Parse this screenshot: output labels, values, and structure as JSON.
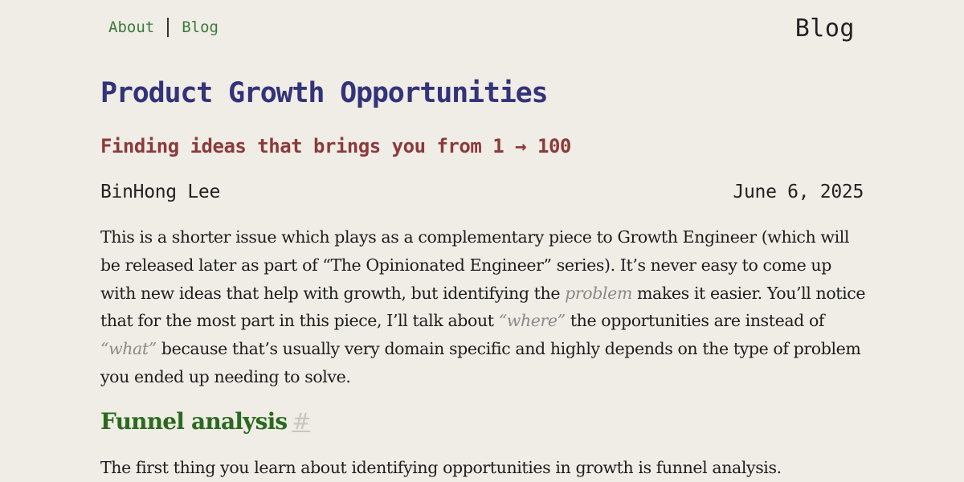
{
  "nav": {
    "about_label": "About",
    "blog_label": "Blog"
  },
  "site": {
    "title": "Blog"
  },
  "post": {
    "title": "Product Growth Opportunities",
    "subtitle": "Finding ideas that brings you from 1 → 100",
    "author": "BinHong Lee",
    "date": "June 6, 2025",
    "intro": {
      "p1": "This is a shorter issue which plays as a complementary piece to Growth Engineer (which will be released later as part of “The Opinionated Engineer” series). It’s never easy to come up with new ideas that help with growth, but identifying the ",
      "em1": "problem",
      "p2": " makes it easier. You’ll notice that for the most part in this piece, I’ll talk about ",
      "em2": "“where”",
      "p3": " the opportunities are instead of ",
      "em3": "“what”",
      "p4": " because that’s usually very domain specific and highly depends on the type of problem you ended up needing to solve."
    },
    "section": {
      "heading": "Funnel analysis",
      "anchor": "#",
      "first_line": "The first thing you learn about identifying opportunities in growth is funnel analysis."
    }
  },
  "colors": {
    "background": "#f0ece6",
    "nav_link": "#3b7a3b",
    "title": "#33337a",
    "subtitle": "#8b3a3a",
    "section_heading": "#2a6a1f",
    "emphasis": "#8a8a8a"
  }
}
